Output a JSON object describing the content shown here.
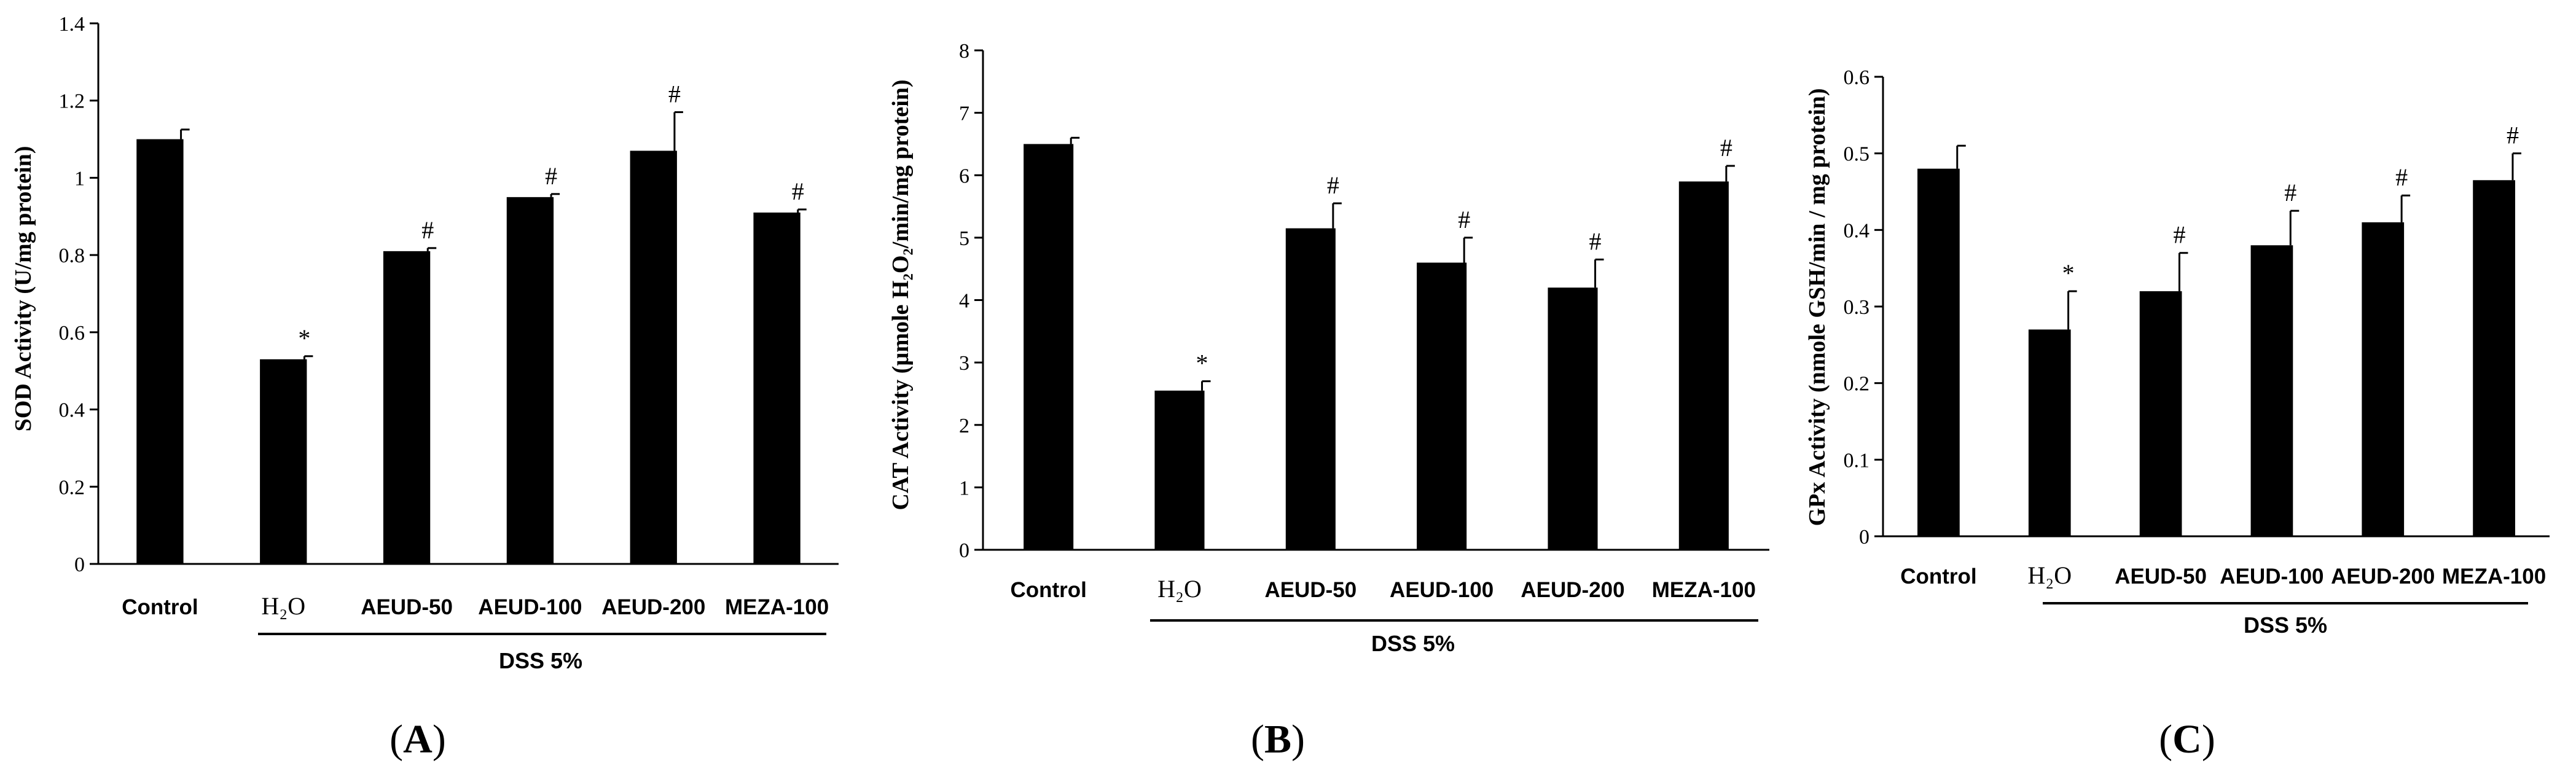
{
  "chart_data": [
    {
      "type": "bar",
      "panel_label": "A",
      "ylabel": "SOD Activity (U/mg protein)",
      "ylim": [
        0,
        1.4
      ],
      "yticks": [
        "0",
        "0.2",
        "0.4",
        "0.6",
        "0.8",
        "1",
        "1.2",
        "1.4"
      ],
      "categories": [
        "Control",
        "H₂O",
        "AEUD-50",
        "AEUD-100",
        "AEUD-200",
        "MEZA-100"
      ],
      "values": [
        1.1,
        0.53,
        0.81,
        0.95,
        1.07,
        0.91
      ],
      "errors": [
        0.025,
        0.008,
        0.008,
        0.008,
        0.1,
        0.008
      ],
      "annotations": [
        "",
        "*",
        "#",
        "#",
        "#",
        "#"
      ],
      "group_label": "DSS 5%"
    },
    {
      "type": "bar",
      "panel_label": "B",
      "ylabel": "CAT Activity (µmole H₂O₂/min/mg protein)",
      "ylim": [
        0,
        8
      ],
      "yticks": [
        "0",
        "1",
        "2",
        "3",
        "4",
        "5",
        "6",
        "7",
        "8"
      ],
      "categories": [
        "Control",
        "H₂O",
        "AEUD-50",
        "AEUD-100",
        "AEUD-200",
        "MEZA-100"
      ],
      "values": [
        6.5,
        2.55,
        5.15,
        4.6,
        4.2,
        5.9
      ],
      "errors": [
        0.1,
        0.15,
        0.4,
        0.4,
        0.45,
        0.25
      ],
      "annotations": [
        "",
        "*",
        "#",
        "#",
        "#",
        "#"
      ],
      "group_label": "DSS 5%"
    },
    {
      "type": "bar",
      "panel_label": "C",
      "ylabel": "GPx Activity (nmole GSH/min / mg protein)",
      "ylim": [
        0,
        0.6
      ],
      "yticks": [
        "0",
        "0.1",
        "0.2",
        "0.3",
        "0.4",
        "0.5",
        "0.6"
      ],
      "categories": [
        "Control",
        "H₂O",
        "AEUD-50",
        "AEUD-100",
        "AEUD-200",
        "MEZA-100"
      ],
      "values": [
        0.48,
        0.27,
        0.32,
        0.38,
        0.41,
        0.465
      ],
      "errors": [
        0.03,
        0.05,
        0.05,
        0.045,
        0.035,
        0.035
      ],
      "annotations": [
        "",
        "*",
        "#",
        "#",
        "#",
        "#"
      ],
      "group_label": "DSS 5%"
    }
  ]
}
